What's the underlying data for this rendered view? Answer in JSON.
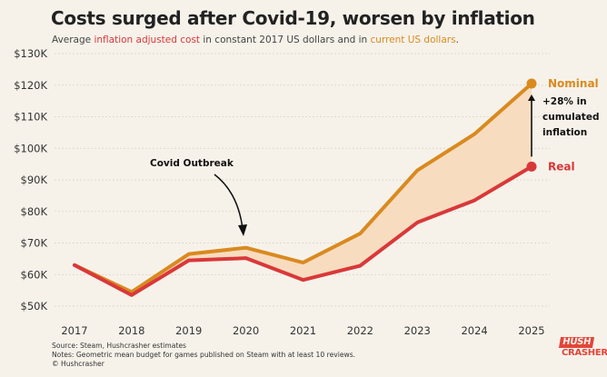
{
  "title": "Costs surged after Covid-19, worsen by inflation",
  "subtitle": {
    "prefix": "Average ",
    "real_phrase": "inflation adjusted cost",
    "middle": " in constant 2017 US dollars and in ",
    "nominal_phrase": "current US dollars",
    "suffix": "."
  },
  "colors": {
    "real": "#d9383a",
    "nominal": "#d98a1f",
    "fill": "#f8dcc0",
    "background": "#f6f2ea",
    "grid": "#d8d4cc"
  },
  "chart_data": {
    "type": "line",
    "x": [
      2017,
      2018,
      2019,
      2020,
      2021,
      2022,
      2023,
      2024,
      2025
    ],
    "ylim": [
      50000,
      130000
    ],
    "y_ticks": [
      50000,
      60000,
      70000,
      80000,
      90000,
      100000,
      110000,
      120000,
      130000
    ],
    "y_tick_labels": [
      "$50K",
      "$60K",
      "$70K",
      "$80K",
      "$90K",
      "$100K",
      "$110K",
      "$120K",
      "$130K"
    ],
    "x_tick_labels": [
      "2017",
      "2018",
      "2019",
      "2020",
      "2021",
      "2022",
      "2023",
      "2024",
      "2025"
    ],
    "grid": "horizontal",
    "series": [
      {
        "name": "Nominal",
        "key": "nominal",
        "values": [
          63000,
          54500,
          66500,
          68500,
          63800,
          73000,
          93000,
          104500,
          120500
        ]
      },
      {
        "name": "Real",
        "key": "real",
        "values": [
          63000,
          53500,
          64500,
          65200,
          58300,
          62800,
          76500,
          83500,
          94200
        ]
      }
    ],
    "annotations": {
      "covid": "Covid Outbreak",
      "gap_line1": "+28% in",
      "gap_line2": "cumulated",
      "gap_line3": "inflation"
    }
  },
  "footer": {
    "source": "Source: Steam, Hushcrasher estimates",
    "notes": "Notes: Geometric mean budget for games published on Steam with at least 10 reviews.",
    "copyright": "© Hushcrasher"
  },
  "logo": {
    "line1": "HUSH",
    "line2": "CRASHER"
  }
}
